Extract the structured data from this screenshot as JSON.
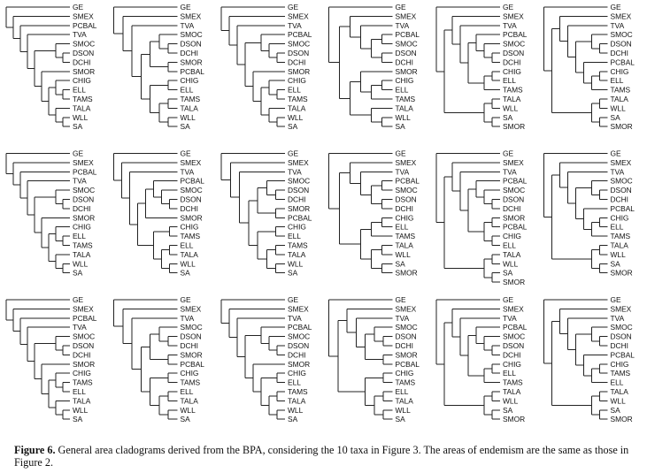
{
  "figure": {
    "caption_label": "Figure 6.",
    "caption_text": " General area cladograms derived from the BPA, considering the 10 taxa in Figure 3. The areas of endemism are the same as those in Figure 2.",
    "panels": [
      {
        "tree": [
          "GE",
          [
            "SMEX",
            [
              "PCBAL",
              [
                "TVA",
                [
                  [
                    "SMOC",
                    [
                      "DSON",
                      "DCHI"
                    ]
                  ],
                  [
                    "SMOR",
                    [
                      [
                        "CHIG",
                        [
                          "ELL",
                          "TAMS"
                        ]
                      ],
                      [
                        "TALA",
                        [
                          "WLL",
                          "SA"
                        ]
                      ]
                    ]
                  ]
                ]
              ]
            ]
          ]
        ]
      },
      {
        "tree": [
          "GE",
          [
            "SMEX",
            [
              "TVA",
              [
                [
                  [
                    "SMOC",
                    [
                      "DSON",
                      "DCHI"
                    ]
                  ],
                  [
                    "SMOR",
                    "PCBAL"
                  ]
                ],
                [
                  [
                    "CHIG",
                    "ELL"
                  ],
                  [
                    [
                      "TAMS",
                      "TALA"
                    ],
                    [
                      "WLL",
                      "SA"
                    ]
                  ]
                ]
              ]
            ]
          ]
        ]
      },
      {
        "tree": [
          "GE",
          [
            "SMEX",
            [
              "TVA",
              [
                [
                  "PCBAL",
                  [
                    "SMOC",
                    [
                      "DSON",
                      "DCHI"
                    ]
                  ]
                ],
                [
                  "SMOR",
                  [
                    [
                      "CHIG",
                      [
                        "ELL",
                        "TAMS"
                      ]
                    ],
                    [
                      "TALA",
                      [
                        "WLL",
                        "SA"
                      ]
                    ]
                  ]
                ]
              ]
            ]
          ]
        ]
      },
      {
        "tree": [
          "GE",
          [
            [
              "SMEX",
              [
                "TVA",
                [
                  [
                    "PCBAL",
                    "SMOC"
                  ],
                  [
                    "DSON",
                    "DCHI"
                  ]
                ]
              ]
            ],
            [
              [
                "SMOR",
                [
                  [
                    "CHIG",
                    "ELL"
                  ],
                  "TAMS"
                ]
              ],
              [
                "TALA",
                [
                  "WLL",
                  "SA"
                ]
              ]
            ]
          ]
        ]
      },
      {
        "tree": [
          "GE",
          [
            [
              "SMEX",
              [
                "TVA",
                [
                  [
                    "PCBAL",
                    [
                      "SMOC",
                      [
                        "DSON",
                        "DCHI"
                      ]
                    ]
                  ],
                  [
                    [
                      "CHIG",
                      "ELL"
                    ],
                    "TAMS"
                  ]
                ]
              ]
            ],
            [
              [
                "TALA",
                "WLL"
              ],
              [
                "SA",
                "SMOR"
              ]
            ]
          ]
        ]
      },
      {
        "tree": [
          "GE",
          [
            [
              "SMEX",
              [
                "TVA",
                [
                  [
                    "SMOC",
                    [
                      "DSON",
                      "DCHI"
                    ]
                  ],
                  [
                    "PCBAL",
                    [
                      [
                        "CHIG",
                        "ELL"
                      ],
                      "TAMS"
                    ]
                  ]
                ]
              ]
            ],
            [
              [
                "TALA",
                "WLL"
              ],
              [
                "SA",
                "SMOR"
              ]
            ]
          ]
        ]
      },
      {
        "tree": [
          "GE",
          [
            "SMEX",
            [
              "PCBAL",
              [
                "TVA",
                [
                  [
                    "SMOC",
                    [
                      "DSON",
                      "DCHI"
                    ]
                  ],
                  [
                    "SMOR",
                    [
                      [
                        "CHIG",
                        [
                          "ELL",
                          "TAMS"
                        ]
                      ],
                      [
                        "TALA",
                        [
                          "WLL",
                          "SA"
                        ]
                      ]
                    ]
                  ]
                ]
              ]
            ]
          ]
        ]
      },
      {
        "tree": [
          "GE",
          [
            "SMEX",
            [
              "TVA",
              [
                [
                  [
                    "PCBAL",
                    [
                      "SMOC",
                      [
                        "DSON",
                        "DCHI"
                      ]
                    ]
                  ],
                  "SMOR"
                ],
                [
                  [
                    "CHIG",
                    "TAMS"
                  ],
                  [
                    [
                      "ELL",
                      "TALA"
                    ],
                    [
                      "WLL",
                      "SA"
                    ]
                  ]
                ]
              ]
            ]
          ]
        ]
      },
      {
        "tree": [
          "GE",
          [
            "SMEX",
            [
              "TVA",
              [
                [
                  [
                    "SMOC",
                    [
                      "DSON",
                      "DCHI"
                    ]
                  ],
                  [
                    "SMOR",
                    "PCBAL"
                  ]
                ],
                [
                  [
                    "CHIG",
                    "ELL"
                  ],
                  [
                    [
                      "TAMS",
                      "TALA"
                    ],
                    [
                      "WLL",
                      "SA"
                    ]
                  ]
                ]
              ]
            ]
          ]
        ]
      },
      {
        "tree": [
          "GE",
          [
            [
              "SMEX",
              [
                "TVA",
                [
                  [
                    "PCBAL",
                    "SMOC"
                  ],
                  [
                    "DSON",
                    "DCHI"
                  ]
                ]
              ]
            ],
            [
              [
                [
                  "CHIG",
                  "ELL"
                ],
                "TAMS"
              ],
              [
                [
                  "TALA",
                  "WLL"
                ],
                [
                  "SA",
                  "SMOR"
                ]
              ]
            ]
          ]
        ]
      },
      {
        "tree": [
          "GE",
          [
            [
              "SMEX",
              [
                "TVA",
                [
                  [
                    "PCBAL",
                    [
                      "SMOC",
                      [
                        "DSON",
                        "DCHI"
                      ]
                    ]
                  ],
                  [
                    [
                      "SMOR",
                      "PCBAL"
                    ],
                    [
                      "CHIG",
                      "ELL"
                    ]
                  ]
                ]
              ]
            ],
            [
              [
                "TALA",
                "WLL"
              ],
              [
                "SA",
                "SMOR"
              ]
            ]
          ]
        ]
      },
      {
        "tree": [
          "GE",
          [
            [
              "SMEX",
              [
                "TVA",
                [
                  [
                    "SMOC",
                    [
                      "DSON",
                      "DCHI"
                    ]
                  ],
                  [
                    "PCBAL",
                    [
                      [
                        "CHIG",
                        "ELL"
                      ],
                      "TAMS"
                    ]
                  ]
                ]
              ]
            ],
            [
              [
                "TALA",
                "WLL"
              ],
              [
                "SA",
                "SMOR"
              ]
            ]
          ]
        ]
      },
      {
        "tree": [
          "GE",
          [
            "SMEX",
            [
              "PCBAL",
              [
                "TVA",
                [
                  [
                    "SMOC",
                    [
                      "DSON",
                      "DCHI"
                    ]
                  ],
                  [
                    "SMOR",
                    [
                      [
                        "CHIG",
                        [
                          "TAMS",
                          "ELL"
                        ]
                      ],
                      [
                        "TALA",
                        [
                          "WLL",
                          "SA"
                        ]
                      ]
                    ]
                  ]
                ]
              ]
            ]
          ]
        ]
      },
      {
        "tree": [
          "GE",
          [
            "SMEX",
            [
              "TVA",
              [
                [
                  [
                    "SMOC",
                    [
                      "DSON",
                      "DCHI"
                    ]
                  ],
                  [
                    "SMOR",
                    "PCBAL"
                  ]
                ],
                [
                  [
                    "CHIG",
                    "TAMS"
                  ],
                  [
                    [
                      "ELL",
                      "TALA"
                    ],
                    [
                      "WLL",
                      "SA"
                    ]
                  ]
                ]
              ]
            ]
          ]
        ]
      },
      {
        "tree": [
          "GE",
          [
            "SMEX",
            [
              "TVA",
              [
                [
                  "PCBAL",
                  [
                    "SMOC",
                    [
                      "DSON",
                      "DCHI"
                    ]
                  ]
                ],
                [
                  "SMOR",
                  [
                    [
                      "CHIG",
                      "ELL"
                    ],
                    [
                      [
                        "TAMS",
                        "TALA"
                      ],
                      [
                        "WLL",
                        "SA"
                      ]
                    ]
                  ]
                ]
              ]
            ]
          ]
        ]
      },
      {
        "tree": [
          "GE",
          [
            [
              "SMEX",
              [
                "TVA",
                [
                  [
                    "SMOC",
                    [
                      "DSON",
                      "DCHI"
                    ]
                  ],
                  [
                    "SMOR",
                    "PCBAL"
                  ]
                ]
              ]
            ],
            [
              [
                "CHIG",
                "TAMS"
              ],
              [
                [
                  "ELL",
                  "TALA"
                ],
                [
                  "WLL",
                  "SA"
                ]
              ]
            ]
          ]
        ]
      },
      {
        "tree": [
          "GE",
          [
            [
              "SMEX",
              [
                "TVA",
                [
                  [
                    "PCBAL",
                    [
                      "SMOC",
                      [
                        "DSON",
                        "DCHI"
                      ]
                    ]
                  ],
                  [
                    [
                      "CHIG",
                      "ELL"
                    ],
                    "TAMS"
                  ]
                ]
              ]
            ],
            [
              [
                "TALA",
                "WLL"
              ],
              [
                "SA",
                "SMOR"
              ]
            ]
          ]
        ]
      },
      {
        "tree": [
          "GE",
          [
            [
              "SMEX",
              [
                "TVA",
                [
                  [
                    "SMOC",
                    [
                      "DSON",
                      "DCHI"
                    ]
                  ],
                  [
                    "PCBAL",
                    [
                      [
                        "CHIG",
                        "TAMS"
                      ],
                      "ELL"
                    ]
                  ]
                ]
              ]
            ],
            [
              [
                "TALA",
                "WLL"
              ],
              [
                "SA",
                "SMOR"
              ]
            ]
          ]
        ]
      }
    ]
  }
}
